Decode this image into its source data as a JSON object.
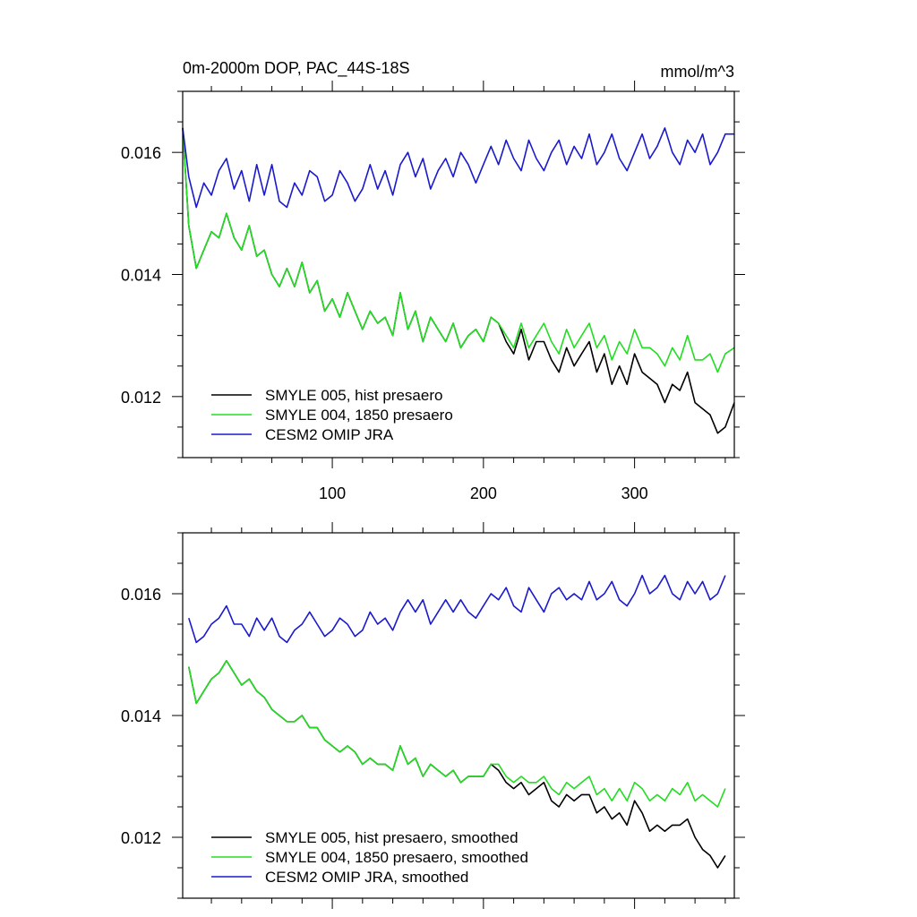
{
  "colors": {
    "black": "#000000",
    "green": "#22dd22",
    "blue": "#1a1acc"
  },
  "chart_data": [
    {
      "type": "line",
      "title": "0m-2000m DOP, PAC_44S-18S",
      "units": "mmol/m^3",
      "xlim": [
        1,
        366
      ],
      "ylim": [
        0.011,
        0.017
      ],
      "x_ticks": [
        100,
        200,
        300
      ],
      "x_tick_labels": [
        "100",
        "200",
        "300"
      ],
      "y_ticks": [
        0.012,
        0.014,
        0.016
      ],
      "y_tick_labels": [
        "0.012",
        "0.014",
        "0.016"
      ],
      "legend_position": "bottom-left",
      "series": [
        {
          "name": "SMYLE 005, hist presaero",
          "color": "#000000",
          "x": [
            1,
            5,
            10,
            15,
            20,
            25,
            30,
            35,
            40,
            45,
            50,
            55,
            60,
            65,
            70,
            75,
            80,
            85,
            90,
            95,
            100,
            105,
            110,
            115,
            120,
            125,
            130,
            135,
            140,
            145,
            150,
            155,
            160,
            165,
            170,
            175,
            180,
            185,
            190,
            195,
            200,
            205,
            210,
            215,
            220,
            225,
            230,
            235,
            240,
            245,
            250,
            255,
            260,
            265,
            270,
            275,
            280,
            285,
            290,
            295,
            300,
            305,
            310,
            315,
            320,
            325,
            330,
            335,
            340,
            345,
            350,
            355,
            360,
            366
          ],
          "y": [
            0.0164,
            0.0148,
            0.0141,
            0.0144,
            0.0147,
            0.0146,
            0.015,
            0.0146,
            0.0144,
            0.0148,
            0.0143,
            0.0144,
            0.014,
            0.0138,
            0.0141,
            0.0138,
            0.0142,
            0.0137,
            0.0139,
            0.0134,
            0.0136,
            0.0133,
            0.0137,
            0.0134,
            0.0131,
            0.0134,
            0.0132,
            0.0133,
            0.013,
            0.0137,
            0.0131,
            0.0134,
            0.0129,
            0.0133,
            0.0131,
            0.0129,
            0.0132,
            0.0128,
            0.013,
            0.0131,
            0.0129,
            0.0133,
            0.0132,
            0.0129,
            0.0127,
            0.0131,
            0.0126,
            0.0129,
            0.0129,
            0.0126,
            0.0124,
            0.0128,
            0.0125,
            0.0127,
            0.0129,
            0.0124,
            0.0127,
            0.0122,
            0.0125,
            0.0122,
            0.0127,
            0.0124,
            0.0123,
            0.0122,
            0.0119,
            0.0122,
            0.0121,
            0.0124,
            0.0119,
            0.0118,
            0.0117,
            0.0114,
            0.0115,
            0.0119
          ]
        },
        {
          "name": "SMYLE 004, 1850 presaero",
          "color": "#22dd22",
          "x": [
            1,
            5,
            10,
            15,
            20,
            25,
            30,
            35,
            40,
            45,
            50,
            55,
            60,
            65,
            70,
            75,
            80,
            85,
            90,
            95,
            100,
            105,
            110,
            115,
            120,
            125,
            130,
            135,
            140,
            145,
            150,
            155,
            160,
            165,
            170,
            175,
            180,
            185,
            190,
            195,
            200,
            205,
            210,
            215,
            220,
            225,
            230,
            235,
            240,
            245,
            250,
            255,
            260,
            265,
            270,
            275,
            280,
            285,
            290,
            295,
            300,
            305,
            310,
            315,
            320,
            325,
            330,
            335,
            340,
            345,
            350,
            355,
            360,
            366
          ],
          "y": [
            0.0164,
            0.0148,
            0.0141,
            0.0144,
            0.0147,
            0.0146,
            0.015,
            0.0146,
            0.0144,
            0.0148,
            0.0143,
            0.0144,
            0.014,
            0.0138,
            0.0141,
            0.0138,
            0.0142,
            0.0137,
            0.0139,
            0.0134,
            0.0136,
            0.0133,
            0.0137,
            0.0134,
            0.0131,
            0.0134,
            0.0132,
            0.0133,
            0.013,
            0.0137,
            0.0131,
            0.0134,
            0.0129,
            0.0133,
            0.0131,
            0.0129,
            0.0132,
            0.0128,
            0.013,
            0.0131,
            0.0129,
            0.0133,
            0.0132,
            0.013,
            0.0128,
            0.0132,
            0.0128,
            0.013,
            0.0132,
            0.0129,
            0.0127,
            0.0131,
            0.0128,
            0.013,
            0.0132,
            0.0128,
            0.013,
            0.0126,
            0.0129,
            0.0127,
            0.0131,
            0.0128,
            0.0128,
            0.0127,
            0.0125,
            0.0128,
            0.0126,
            0.013,
            0.0126,
            0.0126,
            0.0127,
            0.0124,
            0.0127,
            0.0128
          ]
        },
        {
          "name": "CESM2 OMIP JRA",
          "color": "#1a1acc",
          "x": [
            1,
            5,
            10,
            15,
            20,
            25,
            30,
            35,
            40,
            45,
            50,
            55,
            60,
            65,
            70,
            75,
            80,
            85,
            90,
            95,
            100,
            105,
            110,
            115,
            120,
            125,
            130,
            135,
            140,
            145,
            150,
            155,
            160,
            165,
            170,
            175,
            180,
            185,
            190,
            195,
            200,
            205,
            210,
            215,
            220,
            225,
            230,
            235,
            240,
            245,
            250,
            255,
            260,
            265,
            270,
            275,
            280,
            285,
            290,
            295,
            300,
            305,
            310,
            315,
            320,
            325,
            330,
            335,
            340,
            345,
            350,
            355,
            360,
            366
          ],
          "y": [
            0.0164,
            0.0156,
            0.0151,
            0.0155,
            0.0153,
            0.0157,
            0.0159,
            0.0154,
            0.0157,
            0.0152,
            0.0158,
            0.0153,
            0.0158,
            0.0152,
            0.0151,
            0.0155,
            0.0153,
            0.0157,
            0.0156,
            0.0152,
            0.0153,
            0.0157,
            0.0155,
            0.0152,
            0.0154,
            0.0158,
            0.0154,
            0.0157,
            0.0153,
            0.0158,
            0.016,
            0.0156,
            0.0159,
            0.0154,
            0.0157,
            0.0159,
            0.0156,
            0.016,
            0.0158,
            0.0155,
            0.0158,
            0.0161,
            0.0158,
            0.0162,
            0.0159,
            0.0157,
            0.0162,
            0.0159,
            0.0157,
            0.016,
            0.0162,
            0.0158,
            0.0161,
            0.0159,
            0.0163,
            0.0158,
            0.016,
            0.0163,
            0.0159,
            0.0157,
            0.016,
            0.0163,
            0.0159,
            0.0161,
            0.0164,
            0.016,
            0.0158,
            0.0162,
            0.016,
            0.0163,
            0.0158,
            0.016,
            0.0163,
            0.0163
          ]
        }
      ]
    },
    {
      "type": "line",
      "xlim": [
        1,
        366
      ],
      "ylim": [
        0.011,
        0.017
      ],
      "x_ticks": [
        100,
        200,
        300
      ],
      "y_ticks": [
        0.012,
        0.014,
        0.016
      ],
      "y_tick_labels": [
        "0.012",
        "0.014",
        "0.016"
      ],
      "legend_position": "bottom-left",
      "series": [
        {
          "name": "SMYLE 005, hist presaero, smoothed",
          "color": "#000000",
          "x": [
            5,
            10,
            15,
            20,
            25,
            30,
            35,
            40,
            45,
            50,
            55,
            60,
            65,
            70,
            75,
            80,
            85,
            90,
            95,
            100,
            105,
            110,
            115,
            120,
            125,
            130,
            135,
            140,
            145,
            150,
            155,
            160,
            165,
            170,
            175,
            180,
            185,
            190,
            195,
            200,
            205,
            210,
            215,
            220,
            225,
            230,
            235,
            240,
            245,
            250,
            255,
            260,
            265,
            270,
            275,
            280,
            285,
            290,
            295,
            300,
            305,
            310,
            315,
            320,
            325,
            330,
            335,
            340,
            345,
            350,
            355,
            360
          ],
          "y": [
            0.0148,
            0.0142,
            0.0144,
            0.0146,
            0.0147,
            0.0149,
            0.0147,
            0.0145,
            0.0146,
            0.0144,
            0.0143,
            0.0141,
            0.014,
            0.0139,
            0.0139,
            0.014,
            0.0138,
            0.0138,
            0.0136,
            0.0135,
            0.0134,
            0.0135,
            0.0134,
            0.0132,
            0.0133,
            0.0132,
            0.0132,
            0.0131,
            0.0135,
            0.0132,
            0.0133,
            0.013,
            0.0132,
            0.0131,
            0.013,
            0.0131,
            0.0129,
            0.013,
            0.013,
            0.013,
            0.0132,
            0.0131,
            0.0129,
            0.0128,
            0.0129,
            0.0127,
            0.0128,
            0.0129,
            0.0126,
            0.0125,
            0.0127,
            0.0126,
            0.0127,
            0.0127,
            0.0124,
            0.0125,
            0.0123,
            0.0124,
            0.0122,
            0.0126,
            0.0124,
            0.0121,
            0.0122,
            0.0121,
            0.0122,
            0.0122,
            0.0123,
            0.012,
            0.0118,
            0.0117,
            0.0115,
            0.0117
          ]
        },
        {
          "name": "SMYLE 004, 1850 presaero, smoothed",
          "color": "#22dd22",
          "x": [
            5,
            10,
            15,
            20,
            25,
            30,
            35,
            40,
            45,
            50,
            55,
            60,
            65,
            70,
            75,
            80,
            85,
            90,
            95,
            100,
            105,
            110,
            115,
            120,
            125,
            130,
            135,
            140,
            145,
            150,
            155,
            160,
            165,
            170,
            175,
            180,
            185,
            190,
            195,
            200,
            205,
            210,
            215,
            220,
            225,
            230,
            235,
            240,
            245,
            250,
            255,
            260,
            265,
            270,
            275,
            280,
            285,
            290,
            295,
            300,
            305,
            310,
            315,
            320,
            325,
            330,
            335,
            340,
            345,
            350,
            355,
            360
          ],
          "y": [
            0.0148,
            0.0142,
            0.0144,
            0.0146,
            0.0147,
            0.0149,
            0.0147,
            0.0145,
            0.0146,
            0.0144,
            0.0143,
            0.0141,
            0.014,
            0.0139,
            0.0139,
            0.014,
            0.0138,
            0.0138,
            0.0136,
            0.0135,
            0.0134,
            0.0135,
            0.0134,
            0.0132,
            0.0133,
            0.0132,
            0.0132,
            0.0131,
            0.0135,
            0.0132,
            0.0133,
            0.013,
            0.0132,
            0.0131,
            0.013,
            0.0131,
            0.0129,
            0.013,
            0.013,
            0.013,
            0.0132,
            0.0132,
            0.013,
            0.0129,
            0.013,
            0.0129,
            0.0129,
            0.013,
            0.0128,
            0.0127,
            0.0129,
            0.0128,
            0.0129,
            0.013,
            0.0127,
            0.0128,
            0.0126,
            0.0128,
            0.0126,
            0.0129,
            0.0128,
            0.0126,
            0.0127,
            0.0126,
            0.0128,
            0.0127,
            0.0129,
            0.0126,
            0.0127,
            0.0126,
            0.0125,
            0.0128
          ]
        },
        {
          "name": "CESM2 OMIP JRA, smoothed",
          "color": "#1a1acc",
          "x": [
            5,
            10,
            15,
            20,
            25,
            30,
            35,
            40,
            45,
            50,
            55,
            60,
            65,
            70,
            75,
            80,
            85,
            90,
            95,
            100,
            105,
            110,
            115,
            120,
            125,
            130,
            135,
            140,
            145,
            150,
            155,
            160,
            165,
            170,
            175,
            180,
            185,
            190,
            195,
            200,
            205,
            210,
            215,
            220,
            225,
            230,
            235,
            240,
            245,
            250,
            255,
            260,
            265,
            270,
            275,
            280,
            285,
            290,
            295,
            300,
            305,
            310,
            315,
            320,
            325,
            330,
            335,
            340,
            345,
            350,
            355,
            360
          ],
          "y": [
            0.0156,
            0.0152,
            0.0153,
            0.0155,
            0.0156,
            0.0158,
            0.0155,
            0.0155,
            0.0153,
            0.0156,
            0.0154,
            0.0156,
            0.0153,
            0.0152,
            0.0154,
            0.0155,
            0.0157,
            0.0155,
            0.0153,
            0.0154,
            0.0156,
            0.0155,
            0.0153,
            0.0154,
            0.0157,
            0.0155,
            0.0156,
            0.0154,
            0.0157,
            0.0159,
            0.0157,
            0.0159,
            0.0155,
            0.0157,
            0.0159,
            0.0157,
            0.0159,
            0.0157,
            0.0156,
            0.0158,
            0.016,
            0.0159,
            0.0161,
            0.0158,
            0.0157,
            0.0161,
            0.0159,
            0.0157,
            0.016,
            0.0161,
            0.0159,
            0.016,
            0.0159,
            0.0162,
            0.0159,
            0.016,
            0.0162,
            0.0159,
            0.0158,
            0.016,
            0.0163,
            0.016,
            0.0161,
            0.0163,
            0.016,
            0.0159,
            0.0162,
            0.016,
            0.0162,
            0.0159,
            0.016,
            0.0163
          ]
        }
      ]
    }
  ]
}
